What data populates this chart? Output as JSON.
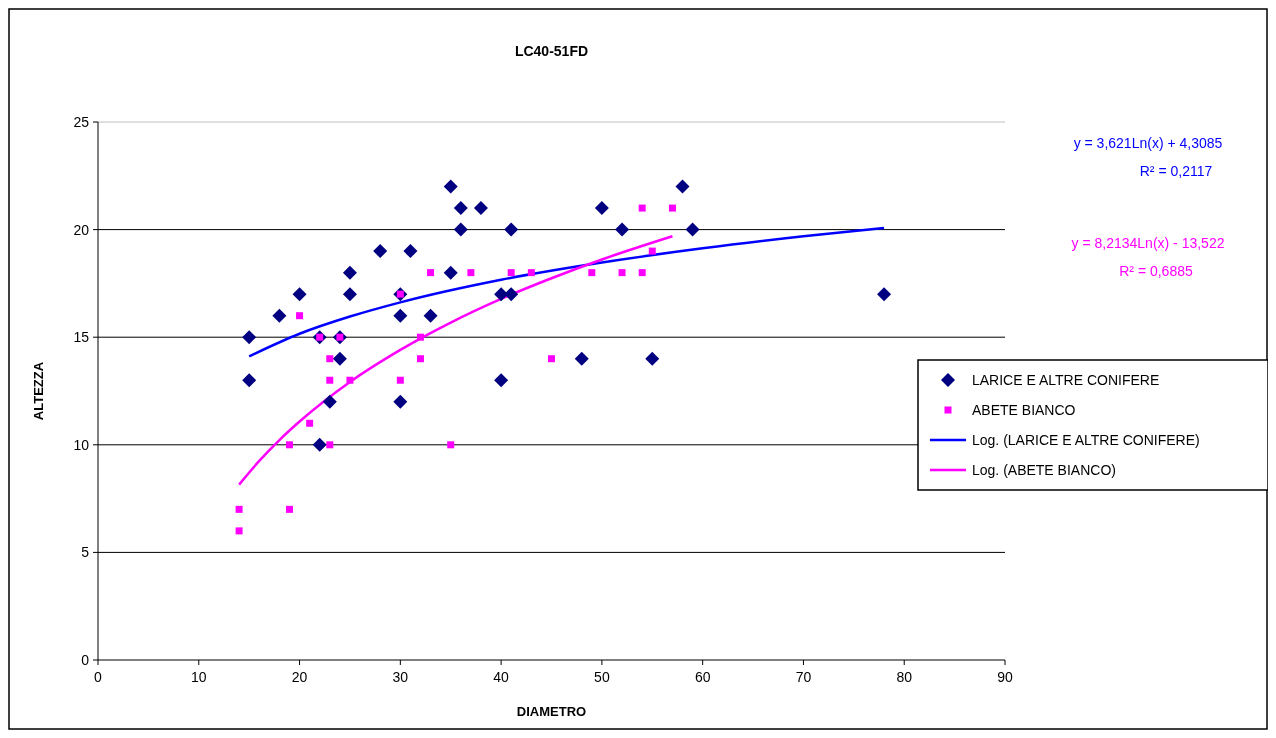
{
  "chart_data": {
    "type": "scatter",
    "title": "LC40-51FD",
    "xlabel": "DIAMETRO",
    "ylabel": "ALTEZZA",
    "xlim": [
      0,
      90
    ],
    "xticks": [
      0,
      10,
      20,
      30,
      40,
      50,
      60,
      70,
      80,
      90
    ],
    "ylim": [
      0,
      25
    ],
    "yticks": [
      0,
      5,
      10,
      15,
      20,
      25
    ],
    "grid": "y",
    "legend": "right",
    "annotations": [
      "y = 3,621Ln(x) + 4,3085",
      "R² = 0,2117",
      "y = 8,2134Ln(x) - 13,522",
      "R² = 0,6885"
    ],
    "series": [
      {
        "name": "LARICE E ALTRE CONIFERE",
        "marker": "diamond",
        "color": "#000080",
        "x": [
          15,
          15,
          18,
          20,
          22,
          22,
          23,
          24,
          24,
          25,
          25,
          28,
          30,
          30,
          30,
          31,
          33,
          35,
          35,
          36,
          36,
          38,
          40,
          40,
          41,
          41,
          48,
          50,
          52,
          55,
          58,
          59,
          78
        ],
        "values": [
          15,
          13,
          16,
          17,
          15,
          10,
          12,
          15,
          14,
          18,
          17,
          19,
          17,
          16,
          12,
          19,
          16,
          22,
          18,
          21,
          20,
          21,
          17,
          13,
          20,
          17,
          14,
          21,
          20,
          14,
          22,
          20,
          17
        ]
      },
      {
        "name": "ABETE BIANCO",
        "marker": "square",
        "color": "#ff00ff",
        "x": [
          14,
          14,
          19,
          19,
          20,
          21,
          22,
          23,
          23,
          23,
          24,
          25,
          30,
          30,
          32,
          32,
          33,
          35,
          37,
          41,
          43,
          45,
          49,
          52,
          54,
          54,
          55,
          57
        ],
        "values": [
          7,
          6,
          10,
          7,
          16,
          11,
          15,
          14,
          13,
          10,
          15,
          13,
          17,
          13,
          15,
          14,
          18,
          10,
          18,
          18,
          18,
          14,
          18,
          18,
          18,
          21,
          19,
          21
        ]
      },
      {
        "name": "Log. (LARICE E ALTRE CONIFERE)",
        "type": "line",
        "marker": "none",
        "line_style": "solid",
        "color": "#0000ff",
        "x": [
          15,
          20,
          25,
          30,
          40,
          50,
          60,
          70,
          78
        ],
        "values": [
          14.11,
          15.16,
          15.96,
          16.62,
          17.67,
          18.47,
          19.13,
          19.69,
          20.08
        ]
      },
      {
        "name": "Log. (ABETE BIANCO)",
        "type": "line",
        "marker": "none",
        "line_style": "solid",
        "color": "#ff00ff",
        "x": [
          14,
          16,
          18,
          20,
          25,
          30,
          35,
          40,
          45,
          50,
          57
        ],
        "values": [
          8.15,
          9.25,
          10.22,
          11.08,
          12.92,
          14.41,
          15.68,
          16.78,
          17.74,
          18.61,
          19.69
        ]
      }
    ]
  }
}
